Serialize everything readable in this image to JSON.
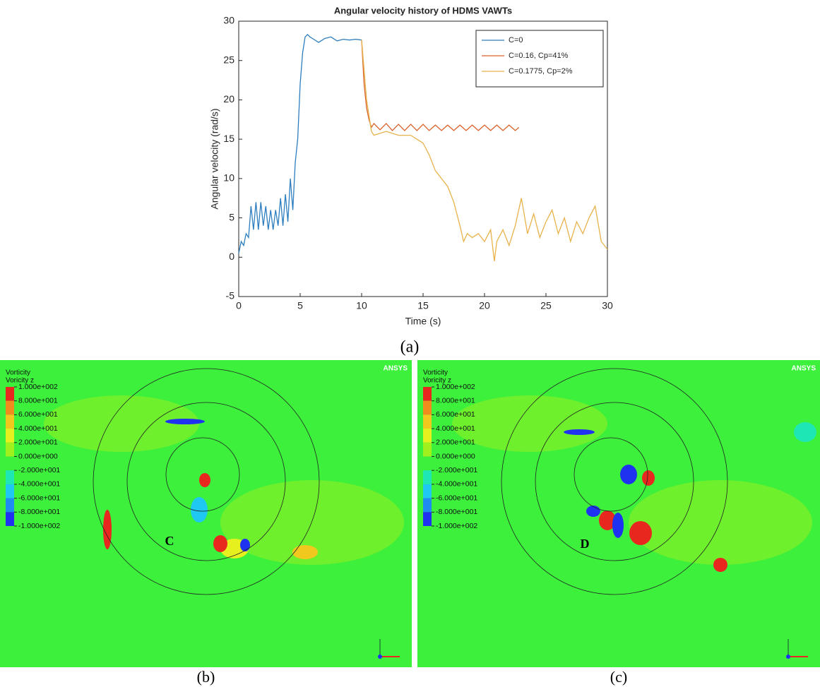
{
  "chart_data": {
    "type": "line",
    "title": "Angular velocity history of HDMS VAWTs",
    "x_label": "Time (s)",
    "y_label": "Angular velocity (rad/s)",
    "panel_label": "(a)",
    "xlim": [
      0,
      30
    ],
    "xticks": [
      0,
      5,
      10,
      15,
      20,
      25,
      30
    ],
    "ylim": [
      -5,
      30
    ],
    "yticks": [
      -5,
      0,
      5,
      10,
      15,
      20,
      25,
      30
    ],
    "legend": "upper-right",
    "grid": false,
    "series": [
      {
        "name": "C=0",
        "color": "#2e7ebf",
        "x": [
          0,
          0.2,
          0.4,
          0.6,
          0.8,
          1.0,
          1.2,
          1.4,
          1.6,
          1.8,
          2.0,
          2.2,
          2.4,
          2.6,
          2.8,
          3.0,
          3.2,
          3.4,
          3.6,
          3.8,
          4.0,
          4.2,
          4.4,
          4.6,
          4.8,
          5.0,
          5.2,
          5.4,
          5.6,
          5.8,
          6.0,
          6.5,
          7.0,
          7.5,
          8.0,
          8.5,
          9.0,
          9.5,
          10.0
        ],
        "values": [
          0.5,
          2,
          1.5,
          3,
          2.5,
          6.5,
          3.5,
          7,
          3.5,
          7,
          4,
          6.5,
          3.5,
          6,
          3.5,
          6,
          4,
          7.5,
          4,
          8,
          4.5,
          10,
          6,
          12,
          15,
          22,
          26,
          28,
          28.3,
          28,
          27.8,
          27.3,
          27.8,
          28,
          27.5,
          27.7,
          27.6,
          27.7,
          27.6
        ]
      },
      {
        "name": "C=0.16, Cp=41%",
        "color": "#d9622b",
        "x": [
          10,
          10.2,
          10.4,
          10.6,
          10.8,
          11,
          11.5,
          12,
          12.5,
          13,
          13.5,
          14,
          14.5,
          15,
          15.5,
          16,
          16.5,
          17,
          17.5,
          18,
          18.5,
          19,
          19.5,
          20,
          20.5,
          21,
          21.5,
          22,
          22.5,
          22.8
        ],
        "values": [
          27.6,
          22,
          19,
          17.5,
          16.5,
          17,
          16.2,
          17,
          16.1,
          16.9,
          16.1,
          16.9,
          16.1,
          16.9,
          16.1,
          16.8,
          16.1,
          16.8,
          16.1,
          16.8,
          16.1,
          16.8,
          16.1,
          16.8,
          16.1,
          16.8,
          16.1,
          16.8,
          16.1,
          16.5
        ]
      },
      {
        "name": "C=0.1775, Cp=2%",
        "color": "#e8b24a",
        "x": [
          10,
          10.4,
          10.8,
          11,
          12,
          13,
          14,
          15,
          15.5,
          16,
          16.5,
          17,
          17.5,
          18,
          18.3,
          18.6,
          19,
          19.5,
          20,
          20.5,
          20.8,
          21,
          21.5,
          22,
          22.5,
          23,
          23.5,
          24,
          24.5,
          25,
          25.5,
          26,
          26.5,
          27,
          27.5,
          28,
          28.5,
          29,
          29.5,
          30
        ],
        "values": [
          27.6,
          20,
          16,
          15.5,
          16,
          15.5,
          15.5,
          14.5,
          13,
          11,
          10,
          9,
          7,
          4,
          2,
          3,
          2.5,
          3,
          2,
          3.5,
          -0.5,
          2,
          3.5,
          1.5,
          4,
          7.5,
          3,
          5.5,
          2.5,
          4.5,
          6,
          3,
          5,
          2,
          4.5,
          3,
          5,
          6.5,
          2,
          1
        ]
      }
    ]
  },
  "contour_panels": [
    {
      "label": "(b)",
      "title": "Vorticity",
      "subtitle": "Voricity z",
      "brand": "ANSYS",
      "marker": "C",
      "colors": [
        "#e8281e",
        "#f08c1e",
        "#f0c81e",
        "#e6f01e",
        "#a0f01e",
        "#3cf03c",
        "#1ee6b4",
        "#1ec8f0",
        "#1e8cf0",
        "#1e32f0"
      ],
      "ticks": [
        {
          "value": 100,
          "label": "1.000e+002"
        },
        {
          "value": 80,
          "label": "8.000e+001"
        },
        {
          "value": 60,
          "label": "6.000e+001"
        },
        {
          "value": 40,
          "label": "4.000e+001"
        },
        {
          "value": 20,
          "label": "2.000e+001"
        },
        {
          "value": 0,
          "label": "0.000e+000"
        },
        {
          "value": -20,
          "label": "-2.000e+001"
        },
        {
          "value": -40,
          "label": "-4.000e+001"
        },
        {
          "value": -60,
          "label": "-6.000e+001"
        },
        {
          "value": -80,
          "label": "-8.000e+001"
        },
        {
          "value": -100,
          "label": "-1.000e+002"
        }
      ]
    },
    {
      "label": "(c)",
      "title": "Vorticity",
      "subtitle": "Voricity z",
      "brand": "ANSYS",
      "marker": "D",
      "colors": [
        "#e8281e",
        "#f08c1e",
        "#f0c81e",
        "#e6f01e",
        "#a0f01e",
        "#3cf03c",
        "#1ee6b4",
        "#1ec8f0",
        "#1e8cf0",
        "#1e32f0"
      ],
      "ticks": [
        {
          "value": 100,
          "label": "1.000e+002"
        },
        {
          "value": 80,
          "label": "8.000e+001"
        },
        {
          "value": 60,
          "label": "6.000e+001"
        },
        {
          "value": 40,
          "label": "4.000e+001"
        },
        {
          "value": 20,
          "label": "2.000e+001"
        },
        {
          "value": 0,
          "label": "0.000e+000"
        },
        {
          "value": -20,
          "label": "-2.000e+001"
        },
        {
          "value": -40,
          "label": "-4.000e+001"
        },
        {
          "value": -60,
          "label": "-6.000e+001"
        },
        {
          "value": -80,
          "label": "-8.000e+001"
        },
        {
          "value": -100,
          "label": "-1.000e+002"
        }
      ]
    }
  ]
}
